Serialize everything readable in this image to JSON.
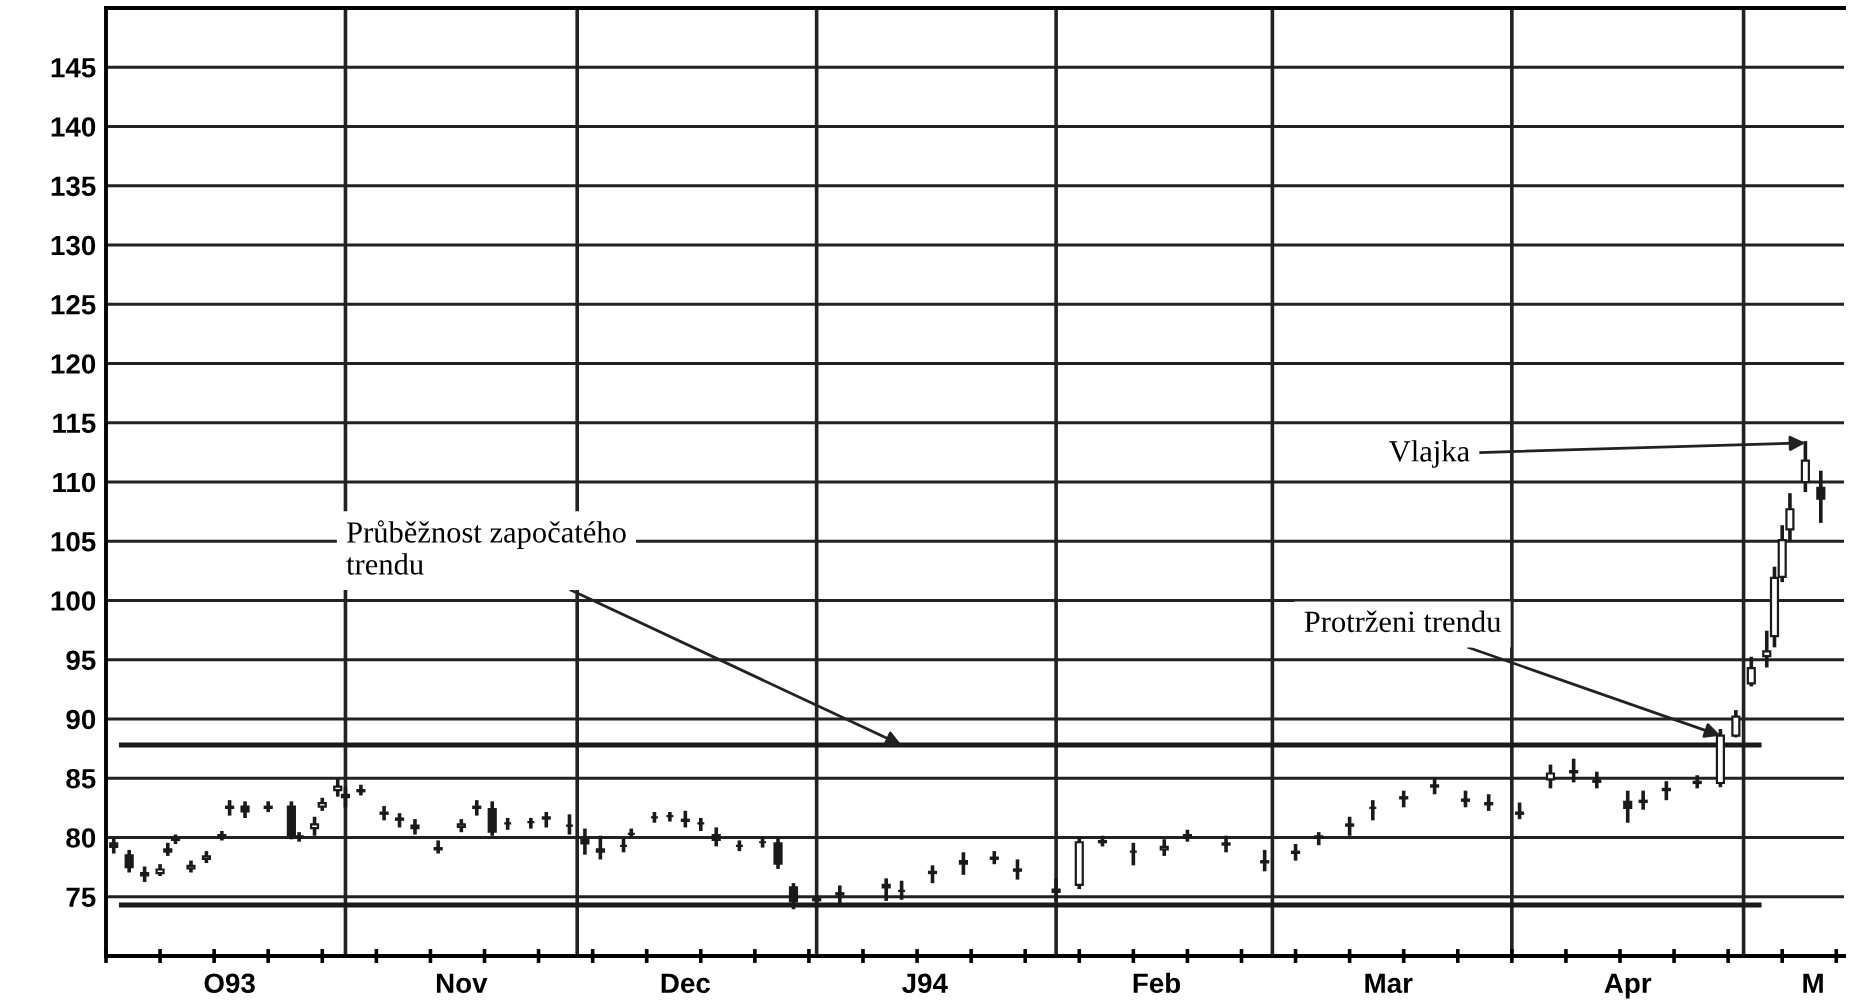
{
  "chart_data": {
    "type": "candlestick",
    "x": [
      "1993-10-02",
      "1993-10-04",
      "1993-10-06",
      "1993-10-08",
      "1993-10-09",
      "1993-10-10",
      "1993-10-12",
      "1993-10-14",
      "1993-10-16",
      "1993-10-17",
      "1993-10-19",
      "1993-10-22",
      "1993-10-25",
      "1993-10-26",
      "1993-10-28",
      "1993-10-29",
      "1993-10-31",
      "1993-11-01",
      "1993-11-03",
      "1993-11-06",
      "1993-11-08",
      "1993-11-10",
      "1993-11-13",
      "1993-11-16",
      "1993-11-18",
      "1993-11-20",
      "1993-11-22",
      "1993-11-25",
      "1993-11-27",
      "1993-11-30",
      "1993-12-02",
      "1993-12-04",
      "1993-12-07",
      "1993-12-08",
      "1993-12-11",
      "1993-12-13",
      "1993-12-15",
      "1993-12-17",
      "1993-12-19",
      "1993-12-22",
      "1993-12-25",
      "1993-12-27",
      "1993-12-29",
      "1994-01-01",
      "1994-01-04",
      "1994-01-10",
      "1994-01-12",
      "1994-01-16",
      "1994-01-20",
      "1994-01-24",
      "1994-01-27",
      "1994-02-01",
      "1994-02-04",
      "1994-02-07",
      "1994-02-11",
      "1994-02-15",
      "1994-02-18",
      "1994-02-23",
      "1994-02-28",
      "1994-03-04",
      "1994-03-07",
      "1994-03-11",
      "1994-03-14",
      "1994-03-18",
      "1994-03-22",
      "1994-03-26",
      "1994-03-29",
      "1994-04-02",
      "1994-04-06",
      "1994-04-09",
      "1994-04-12",
      "1994-04-16",
      "1994-04-18",
      "1994-04-21",
      "1994-04-25",
      "1994-04-28",
      "1994-04-30",
      "1994-05-02",
      "1994-05-04",
      "1994-05-05",
      "1994-05-06",
      "1994-05-07",
      "1994-05-09",
      "1994-05-11"
    ],
    "ohlc": [
      [
        79.5,
        79.8,
        78.8,
        79.2
      ],
      [
        78.5,
        78.8,
        77.2,
        77.5
      ],
      [
        77.0,
        77.4,
        76.4,
        76.8
      ],
      [
        77.0,
        77.6,
        76.9,
        77.3
      ],
      [
        78.8,
        79.4,
        78.6,
        79.0
      ],
      [
        79.8,
        80.1,
        79.6,
        79.9
      ],
      [
        77.4,
        77.9,
        77.2,
        77.6
      ],
      [
        78.2,
        78.7,
        78.0,
        78.4
      ],
      [
        80.1,
        80.4,
        79.9,
        80.2
      ],
      [
        82.5,
        83.0,
        82.0,
        82.6
      ],
      [
        82.6,
        82.9,
        81.8,
        82.2
      ],
      [
        82.5,
        82.9,
        82.3,
        82.6
      ],
      [
        82.6,
        82.9,
        80.0,
        80.2
      ],
      [
        80.0,
        80.3,
        79.8,
        80.1
      ],
      [
        80.8,
        81.6,
        80.3,
        81.1
      ],
      [
        82.6,
        83.2,
        82.4,
        82.9
      ],
      [
        84.0,
        84.8,
        83.6,
        84.3
      ],
      [
        83.6,
        84.1,
        82.7,
        83.4
      ],
      [
        83.9,
        84.3,
        83.7,
        84.0
      ],
      [
        82.1,
        82.5,
        81.6,
        82.0
      ],
      [
        81.6,
        81.9,
        81.0,
        81.5
      ],
      [
        81.0,
        81.4,
        80.4,
        80.8
      ],
      [
        79.1,
        79.6,
        78.8,
        79.0
      ],
      [
        80.9,
        81.4,
        80.6,
        81.1
      ],
      [
        82.6,
        83.0,
        82.0,
        82.5
      ],
      [
        82.4,
        82.9,
        80.3,
        80.5
      ],
      [
        81.2,
        81.5,
        80.8,
        81.2
      ],
      [
        81.3,
        81.5,
        80.9,
        81.3
      ],
      [
        81.6,
        82.0,
        81.0,
        81.7
      ],
      [
        81.0,
        81.8,
        80.4,
        81.0
      ],
      [
        79.8,
        80.6,
        78.7,
        79.5
      ],
      [
        79.0,
        80.0,
        78.3,
        78.8
      ],
      [
        79.3,
        79.8,
        78.9,
        79.3
      ],
      [
        80.3,
        80.6,
        80.1,
        80.3
      ],
      [
        81.7,
        82.0,
        81.4,
        81.7
      ],
      [
        81.8,
        82.0,
        81.5,
        81.8
      ],
      [
        81.5,
        82.1,
        81.0,
        81.4
      ],
      [
        81.2,
        81.5,
        80.7,
        81.2
      ],
      [
        80.2,
        80.7,
        79.4,
        79.8
      ],
      [
        79.3,
        79.6,
        79.0,
        79.3
      ],
      [
        79.6,
        79.9,
        79.3,
        79.6
      ],
      [
        79.5,
        79.8,
        77.5,
        77.8
      ],
      [
        75.8,
        76.0,
        74.1,
        74.6
      ],
      [
        74.8,
        75.0,
        74.2,
        74.7
      ],
      [
        75.3,
        75.8,
        74.4,
        75.2
      ],
      [
        76.0,
        76.4,
        74.8,
        75.8
      ],
      [
        75.5,
        76.2,
        74.9,
        75.5
      ],
      [
        77.0,
        77.5,
        76.3,
        77.1
      ],
      [
        78.0,
        78.6,
        77.0,
        77.8
      ],
      [
        78.3,
        78.7,
        77.9,
        78.2
      ],
      [
        77.3,
        78.0,
        76.6,
        77.2
      ],
      [
        75.6,
        76.4,
        74.8,
        75.4
      ],
      [
        76.0,
        79.9,
        75.8,
        79.6
      ],
      [
        79.7,
        80.0,
        79.4,
        79.6
      ],
      [
        78.8,
        79.4,
        77.8,
        78.8
      ],
      [
        79.0,
        79.7,
        78.6,
        79.2
      ],
      [
        80.2,
        80.5,
        79.8,
        80.1
      ],
      [
        79.5,
        80.0,
        78.9,
        79.4
      ],
      [
        78.0,
        78.8,
        77.3,
        77.9
      ],
      [
        78.7,
        79.3,
        78.2,
        78.8
      ],
      [
        80.0,
        80.3,
        79.5,
        80.1
      ],
      [
        81.0,
        81.6,
        80.3,
        81.1
      ],
      [
        82.5,
        83.0,
        81.6,
        82.5
      ],
      [
        83.3,
        83.8,
        82.7,
        83.4
      ],
      [
        84.3,
        84.9,
        83.8,
        84.4
      ],
      [
        83.2,
        83.8,
        82.7,
        83.1
      ],
      [
        82.9,
        83.5,
        82.4,
        82.8
      ],
      [
        82.0,
        82.8,
        81.7,
        82.1
      ],
      [
        84.9,
        86.0,
        84.3,
        85.4
      ],
      [
        85.5,
        86.5,
        84.8,
        85.6
      ],
      [
        84.8,
        85.4,
        84.3,
        84.7
      ],
      [
        83.0,
        83.8,
        81.4,
        82.5
      ],
      [
        83.0,
        83.8,
        82.5,
        83.1
      ],
      [
        84.1,
        84.6,
        83.3,
        84.0
      ],
      [
        84.6,
        85.1,
        84.3,
        84.7
      ],
      [
        84.6,
        89.0,
        84.4,
        88.6
      ],
      [
        88.6,
        90.6,
        88.6,
        90.2
      ],
      [
        93.0,
        95.1,
        92.9,
        94.3
      ],
      [
        95.3,
        97.3,
        94.5,
        95.7
      ],
      [
        97.0,
        102.7,
        96.2,
        101.9
      ],
      [
        102.0,
        106.2,
        101.7,
        105.1
      ],
      [
        106.0,
        108.9,
        105.2,
        107.7
      ],
      [
        110.0,
        113.3,
        109.3,
        111.8
      ],
      [
        109.5,
        110.8,
        106.7,
        108.6
      ]
    ],
    "color": "#1a1a1a",
    "series": [
      {
        "type": "line",
        "x": [
          "1993-10-03",
          "1994-05-03"
        ],
        "values": [
          87.8,
          87.8
        ],
        "color": "#1a1a1a"
      },
      {
        "type": "line",
        "x": [
          "1993-10-03",
          "1994-05-03"
        ],
        "values": [
          74.3,
          74.3
        ],
        "color": "#1a1a1a"
      }
    ],
    "ylim": [
      70,
      150
    ],
    "yticks": [
      75,
      80,
      85,
      90,
      95,
      100,
      105,
      110,
      115,
      120,
      125,
      130,
      135,
      140,
      145
    ],
    "xlim": [
      "1993-10-01",
      "1994-05-14"
    ],
    "xticks": [
      {
        "value": "1993-10-01",
        "label": null
      },
      {
        "value": "1993-10-08",
        "label": null
      },
      {
        "value": "1993-10-15",
        "label": null
      },
      {
        "value": "1993-10-22",
        "label": null
      },
      {
        "value": "1993-10-29",
        "label": null
      },
      {
        "value": "1993-11-05",
        "label": null
      },
      {
        "value": "1993-11-12",
        "label": null
      },
      {
        "value": "1993-11-19",
        "label": null
      },
      {
        "value": "1993-11-26",
        "label": null
      },
      {
        "value": "1993-12-03",
        "label": null
      },
      {
        "value": "1993-12-10",
        "label": null
      },
      {
        "value": "1993-12-17",
        "label": null
      },
      {
        "value": "1993-12-24",
        "label": null
      },
      {
        "value": "1993-12-31",
        "label": null
      },
      {
        "value": "1994-01-07",
        "label": null
      },
      {
        "value": "1994-01-14",
        "label": null
      },
      {
        "value": "1994-01-21",
        "label": null
      },
      {
        "value": "1994-01-28",
        "label": null
      },
      {
        "value": "1994-02-04",
        "label": null
      },
      {
        "value": "1994-02-11",
        "label": null
      },
      {
        "value": "1994-02-18",
        "label": null
      },
      {
        "value": "1994-02-25",
        "label": null
      },
      {
        "value": "1994-03-04",
        "label": null
      },
      {
        "value": "1994-03-11",
        "label": null
      },
      {
        "value": "1994-03-18",
        "label": null
      },
      {
        "value": "1994-03-25",
        "label": null
      },
      {
        "value": "1994-04-01",
        "label": null
      },
      {
        "value": "1994-04-08",
        "label": null
      },
      {
        "value": "1994-04-15",
        "label": null
      },
      {
        "value": "1994-04-22",
        "label": null
      },
      {
        "value": "1994-04-29",
        "label": null
      },
      {
        "value": "1994-05-06",
        "label": null
      },
      {
        "value": "1994-05-13",
        "label": null
      },
      {
        "value": "1993-10-17",
        "label": "O93"
      },
      {
        "value": "1993-11-16",
        "label": "Nov"
      },
      {
        "value": "1993-12-15",
        "label": "Dec"
      },
      {
        "value": "1994-01-15",
        "label": "J94"
      },
      {
        "value": "1994-02-14",
        "label": "Feb"
      },
      {
        "value": "1994-03-16",
        "label": "Mar"
      },
      {
        "value": "1994-04-16",
        "label": "Apr"
      },
      {
        "value": "1994-05-10",
        "label": "M"
      }
    ],
    "ref_lines": [
      {
        "axis": "x",
        "value": "1993-11-01"
      },
      {
        "axis": "x",
        "value": "1993-12-01"
      },
      {
        "axis": "x",
        "value": "1994-01-01"
      },
      {
        "axis": "x",
        "value": "1994-02-01"
      },
      {
        "axis": "x",
        "value": "1994-03-01"
      },
      {
        "axis": "x",
        "value": "1994-04-01"
      },
      {
        "axis": "x",
        "value": "1994-05-01"
      }
    ],
    "grid": "y",
    "annotations": [
      {
        "text": "Průběžnost započatého\ntrendu",
        "x": "1994-01-12",
        "y": 87.8
      },
      {
        "text": "Protrženi trendu",
        "x": "1994-04-28",
        "y": 88.6
      },
      {
        "text": "Vlajka",
        "x": "1994-05-09",
        "y": 113.3
      }
    ]
  }
}
